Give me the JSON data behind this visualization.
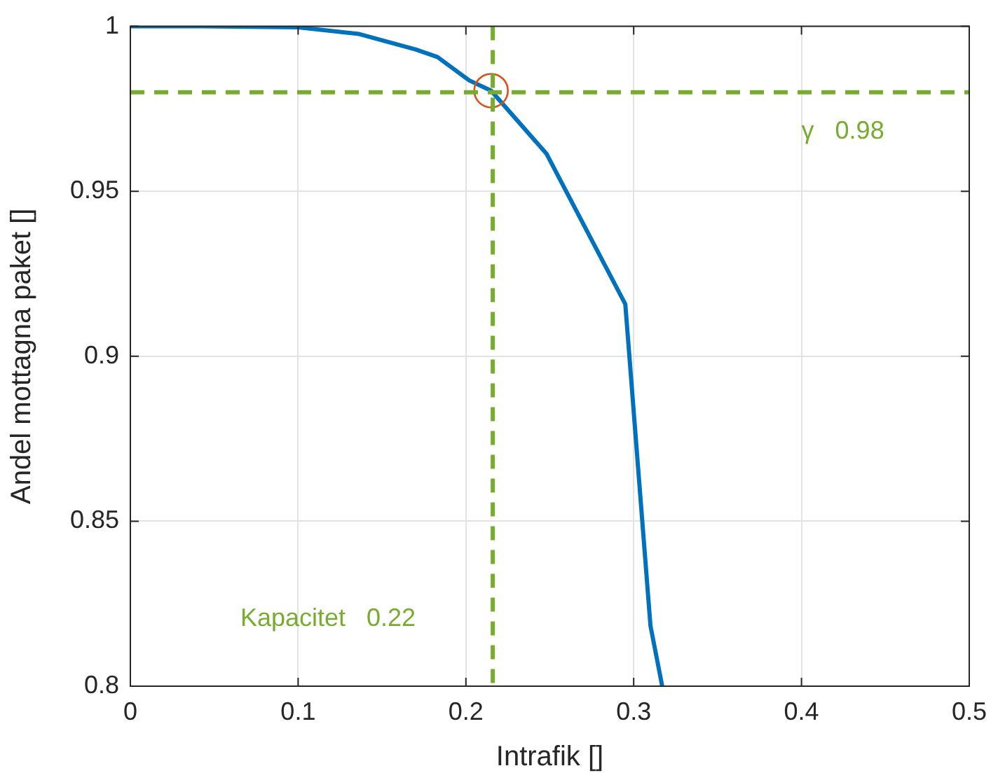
{
  "chart_data": {
    "type": "line",
    "xlabel": "Intrafik []",
    "ylabel": "Andel mottagna paket []",
    "xlim": [
      0,
      0.5
    ],
    "xticks": [
      0,
      0.1,
      0.2,
      0.3,
      0.4,
      0.5
    ],
    "ylim": [
      0.8,
      1
    ],
    "yticks": [
      0.8,
      0.85,
      0.9,
      0.95,
      1
    ],
    "grid": true,
    "series": [
      {
        "color": "#0072bd",
        "x": [
          0,
          0.042,
          0.1,
          0.136,
          0.17,
          0.183,
          0.202,
          0.215,
          0.248,
          0.295,
          0.31,
          0.317
        ],
        "values": [
          1,
          1,
          0.9997,
          0.9977,
          0.993,
          0.9907,
          0.9836,
          0.9805,
          0.9614,
          0.9158,
          0.8183,
          0.8
        ],
        "marker": "none"
      },
      {
        "type": "scatter",
        "color": "#d95319",
        "x": [
          0.215
        ],
        "values": [
          0.9805
        ],
        "marker": "circle"
      }
    ],
    "ref_lines": [
      {
        "axis": "x",
        "value": 0.216,
        "label": "Kapacitet   0.22",
        "color": "#77ac30",
        "line_style": "dashed"
      },
      {
        "axis": "y",
        "value": 0.98,
        "label": "γ   0.98",
        "color": "#77ac30",
        "line_style": "dashed"
      }
    ]
  }
}
